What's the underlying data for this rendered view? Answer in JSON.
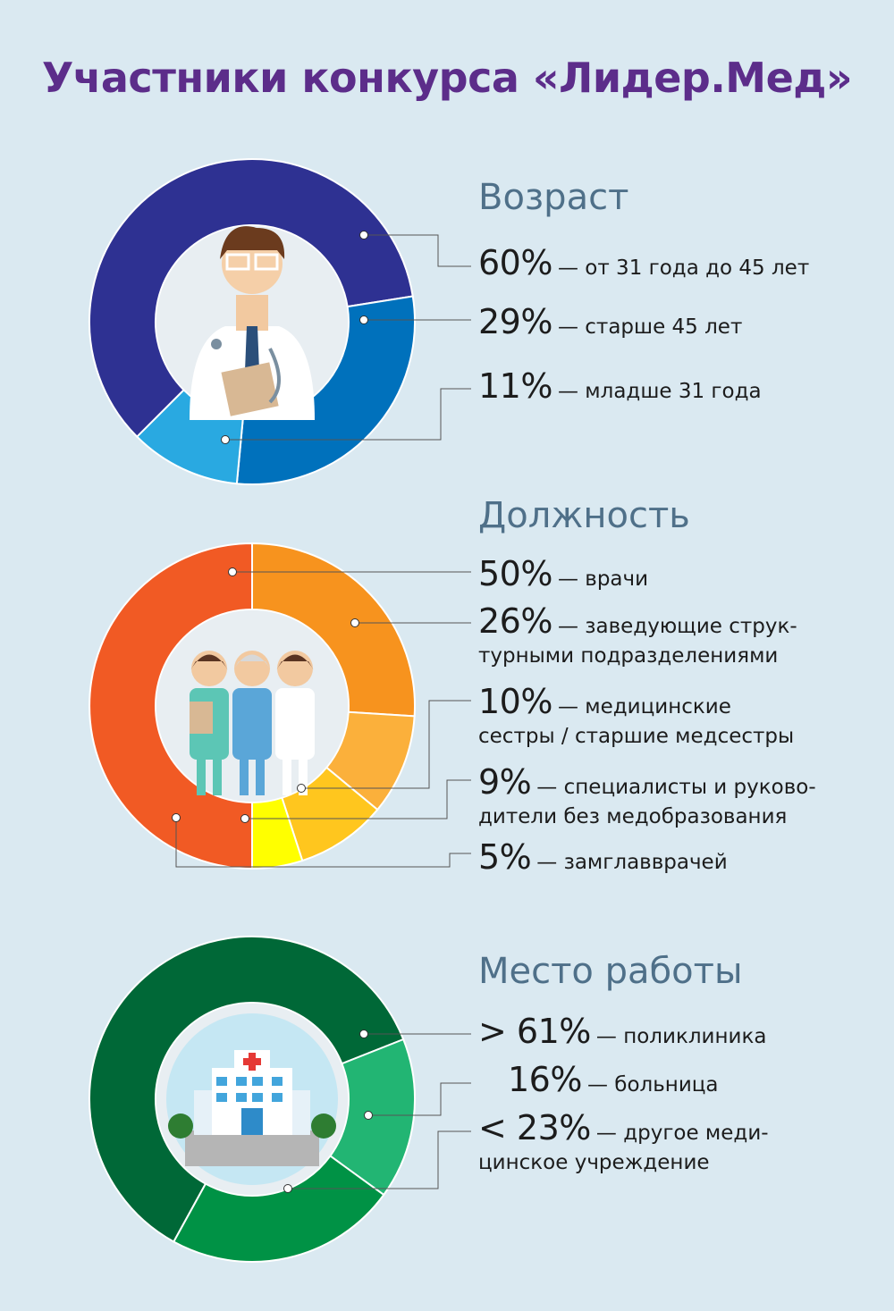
{
  "title": "Участники конкурса «Лидер.Мед»",
  "chart_data": [
    {
      "type": "pie",
      "title": "Возраст",
      "series": [
        {
          "label": "60%",
          "desc": "— от 31 года до 45 лет",
          "value": 60,
          "color": "#2e3192"
        },
        {
          "label": "29%",
          "desc": "— старше 45 лет",
          "value": 29,
          "color": "#0071bc"
        },
        {
          "label": "11%",
          "desc": "— младше 31 года",
          "value": 11,
          "color": "#29a9e1"
        }
      ]
    },
    {
      "type": "pie",
      "title": "Должность",
      "series": [
        {
          "label": "50%",
          "desc": "— врачи",
          "value": 50,
          "color": "#f15a24"
        },
        {
          "label": "26%",
          "desc": "— заведующие струк-",
          "desc2": "турными подразделениями",
          "value": 26,
          "color": "#f7931e"
        },
        {
          "label": "10%",
          "desc": "— медицинские",
          "desc2": "сестры / старшие медсестры",
          "value": 10,
          "color": "#fbb03b"
        },
        {
          "label": "9%",
          "desc": "— специалисты и руково-",
          "desc2": "дители без медобразования",
          "value": 9,
          "color": "#ffc61e"
        },
        {
          "label": "5%",
          "desc": "— замглавврачей",
          "value": 5,
          "color": "#ffff00"
        }
      ]
    },
    {
      "type": "pie",
      "title": "Место работы",
      "series": [
        {
          "label": "> 61%",
          "desc": "— поликлиника",
          "value": 61,
          "color": "#006837"
        },
        {
          "label": "16%",
          "desc": "— больница",
          "value": 16,
          "color": "#22b573"
        },
        {
          "label": "< 23%",
          "desc": "— другое меди-",
          "desc2": "цинское учреждение",
          "value": 23,
          "color": "#009245"
        }
      ]
    }
  ]
}
